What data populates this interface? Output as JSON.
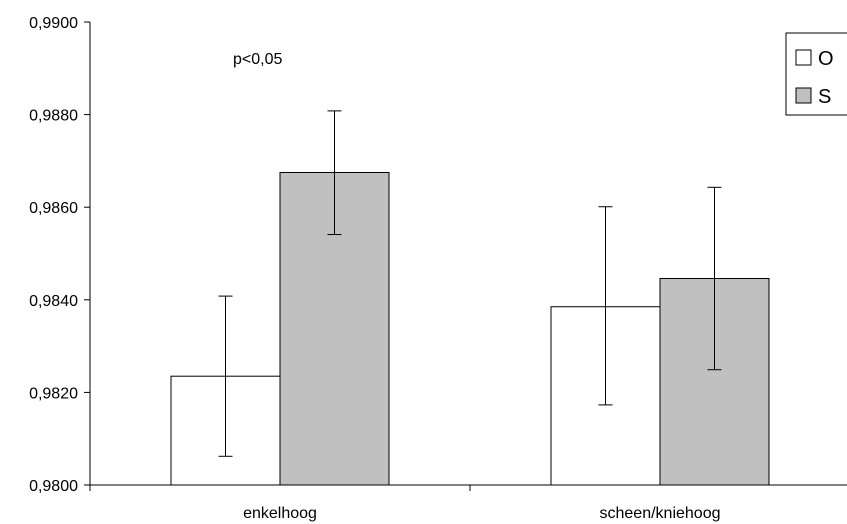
{
  "chart_data": {
    "type": "bar",
    "categories": [
      "enkelhoog",
      "scheen/kniehoog"
    ],
    "series": [
      {
        "name": "O",
        "color": "#ffffff",
        "values": [
          0.98235,
          0.98385
        ],
        "err_low": [
          0.98062,
          0.98173
        ],
        "err_high": [
          0.98408,
          0.98601
        ]
      },
      {
        "name": "S",
        "color": "#c0c0c0",
        "values": [
          0.98675,
          0.98446
        ],
        "err_low": [
          0.98541,
          0.98249
        ],
        "err_high": [
          0.98808,
          0.98643
        ]
      }
    ],
    "yticks": [
      "0,9800",
      "0,9820",
      "0,9840",
      "0,9860",
      "0,9880",
      "0,9900"
    ],
    "ylim": [
      0.98,
      0.99
    ],
    "ytick_values": [
      0.98,
      0.982,
      0.984,
      0.986,
      0.988,
      0.99
    ],
    "annotation": "p<0,05",
    "legend_position": "top-right",
    "grid": false
  }
}
